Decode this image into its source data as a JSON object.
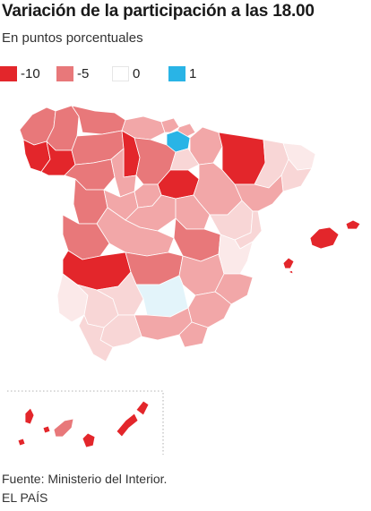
{
  "title": "Variación de la participación a las 18.00",
  "subtitle": "En puntos porcentuales",
  "legend": [
    {
      "label": "-10",
      "color": "#e3262b"
    },
    {
      "label": "-5",
      "color": "#e8787a"
    },
    {
      "label": "0",
      "color": "#ffffff"
    },
    {
      "label": "1",
      "color": "#29b4e6"
    }
  ],
  "palette": {
    "red_strong": "#e3262b",
    "red_medium": "#e8787a",
    "red_light": "#f2a7a8",
    "red_pale": "#f8d6d6",
    "red_very_pale": "#fbe9e9",
    "blue": "#29b4e6",
    "blue_pale": "#e3f4fa"
  },
  "source": "Fuente: Ministerio del Interior.",
  "credit": "EL PAÍS"
}
